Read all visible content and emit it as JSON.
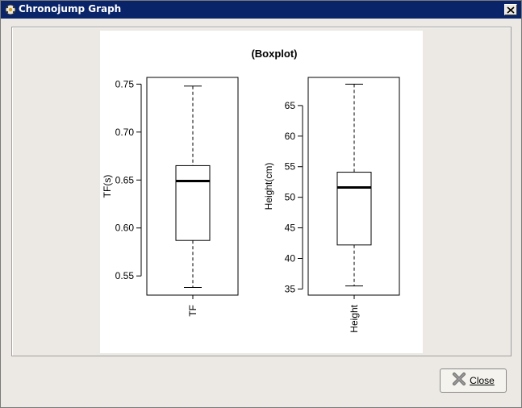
{
  "window": {
    "title": "Chronojump Graph",
    "title_bar_color": "#0a246a",
    "app_icon": "chronojump-icon",
    "close_icon": "close-x-icon"
  },
  "chart_data": [
    {
      "type": "boxplot",
      "title": "(Boxplot)",
      "category": "TF",
      "ylabel": "TF(s)",
      "ylim": [
        0.53,
        0.757
      ],
      "yticks": [
        0.55,
        0.6,
        0.65,
        0.7,
        0.75
      ],
      "ytick_labels": [
        "0.55",
        "0.60",
        "0.65",
        "0.70",
        "0.75"
      ],
      "stats": {
        "min": 0.538,
        "q1": 0.587,
        "median": 0.649,
        "q3": 0.665,
        "max": 0.748
      }
    },
    {
      "type": "boxplot",
      "category": "Height",
      "ylabel": "Height(cm)",
      "ylim": [
        34.0,
        69.6
      ],
      "yticks": [
        35,
        40,
        45,
        50,
        55,
        60,
        65
      ],
      "ytick_labels": [
        "35",
        "40",
        "45",
        "50",
        "55",
        "60",
        "65"
      ],
      "stats": {
        "min": 35.5,
        "q1": 42.2,
        "median": 51.6,
        "q3": 54.1,
        "max": 68.5
      }
    }
  ],
  "footer": {
    "close_label": "Close",
    "close_icon": "x-icon"
  }
}
